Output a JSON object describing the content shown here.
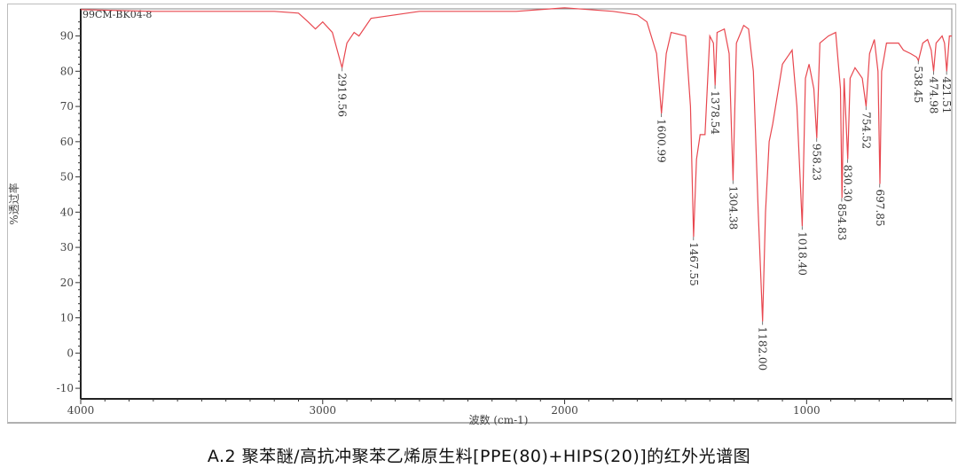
{
  "chart_data": {
    "type": "line",
    "sample_id": "99CM-BK04-8",
    "xlabel": "波数 (cm-1)",
    "ylabel": "%透过率",
    "xlim": [
      4000,
      400
    ],
    "ylim": [
      -13,
      97.7
    ],
    "x_ticks": [
      4000,
      3000,
      2000,
      1000
    ],
    "y_ticks": [
      -10,
      0,
      10,
      20,
      30,
      40,
      50,
      60,
      70,
      80,
      90
    ],
    "grid": false,
    "line_color": "#e8474f",
    "series": [
      {
        "x": [
          4000,
          3700,
          3200,
          3100,
          3060,
          3030,
          3000,
          2960,
          2920,
          2900,
          2870,
          2850,
          2800,
          2600,
          2200,
          2000,
          1800,
          1700,
          1660,
          1620,
          1600,
          1580,
          1560,
          1500,
          1480,
          1467,
          1455,
          1440,
          1420,
          1400,
          1385,
          1378,
          1370,
          1340,
          1320,
          1304,
          1290,
          1260,
          1240,
          1220,
          1200,
          1182,
          1170,
          1155,
          1140,
          1100,
          1060,
          1040,
          1018,
          1005,
          990,
          970,
          958,
          945,
          910,
          880,
          860,
          854,
          845,
          830,
          820,
          800,
          770,
          754,
          740,
          720,
          705,
          697,
          690,
          670,
          620,
          600,
          570,
          545,
          538,
          520,
          500,
          485,
          475,
          465,
          440,
          430,
          421,
          410,
          400
        ],
        "y": [
          97.5,
          97,
          97,
          96.5,
          94,
          92,
          94,
          91,
          81,
          88,
          91,
          90,
          95,
          97,
          97,
          98,
          97,
          96,
          94,
          85,
          68,
          85,
          91,
          90,
          70,
          33,
          55,
          62,
          62,
          90,
          88,
          76,
          91,
          92,
          85,
          49,
          88,
          93,
          92,
          80,
          40,
          9,
          40,
          60,
          65,
          82,
          86,
          70,
          36,
          78,
          82,
          75,
          61,
          88,
          90,
          91,
          75,
          44,
          78,
          55,
          78,
          81,
          78,
          70,
          85,
          89,
          80,
          48,
          80,
          88,
          88,
          86,
          85,
          84,
          83,
          88,
          89,
          86,
          80,
          88,
          90,
          88,
          80,
          90,
          90
        ]
      }
    ],
    "annotations": [
      {
        "x": 2919.56,
        "y": 81,
        "label": "2919.56"
      },
      {
        "x": 1600.99,
        "y": 68,
        "label": "1600.99"
      },
      {
        "x": 1467.55,
        "y": 33,
        "label": "1467.55"
      },
      {
        "x": 1378.54,
        "y": 76,
        "label": "1378.54"
      },
      {
        "x": 1304.38,
        "y": 49,
        "label": "1304.38"
      },
      {
        "x": 1182.0,
        "y": 9,
        "label": "1182.00"
      },
      {
        "x": 1018.4,
        "y": 36,
        "label": "1018.40"
      },
      {
        "x": 958.23,
        "y": 61,
        "label": "958.23"
      },
      {
        "x": 854.83,
        "y": 44,
        "label": "854.83"
      },
      {
        "x": 830.3,
        "y": 55,
        "label": "830.30"
      },
      {
        "x": 754.52,
        "y": 70,
        "label": "754.52"
      },
      {
        "x": 697.85,
        "y": 48,
        "label": "697.85"
      },
      {
        "x": 538.45,
        "y": 83,
        "label": "538.45"
      },
      {
        "x": 474.98,
        "y": 80,
        "label": "474.98"
      },
      {
        "x": 421.51,
        "y": 80,
        "label": "421.51"
      }
    ]
  },
  "caption": "A.2 聚苯醚/高抗冲聚苯乙烯原生料[PPE(80)+HIPS(20)]的红外光谱图"
}
